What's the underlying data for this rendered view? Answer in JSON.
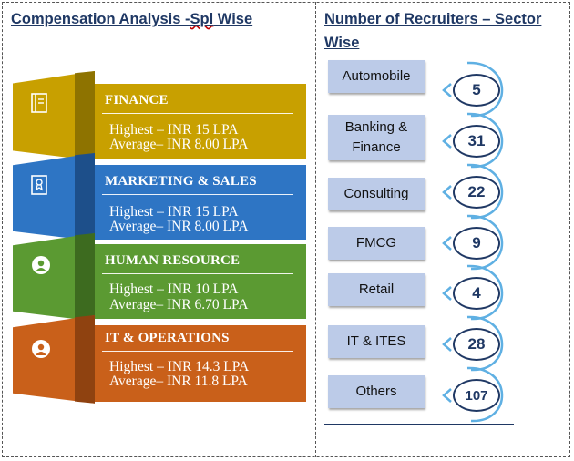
{
  "left_title_part1": "Compensation Analysis -",
  "left_title_part2": "Spl",
  "left_title_part3": " Wise",
  "right_title": "Number of Recruiters – Sector Wise",
  "specializations": [
    {
      "name": "FINANCE",
      "highest": "Highest – INR 15 LPA",
      "average": "Average– INR 8.00  LPA",
      "color": "#c8a000",
      "dark": "#8e7300",
      "icon": "book-icon"
    },
    {
      "name": "MARKETING & SALES",
      "highest": "Highest – INR 15 LPA",
      "average": "Average– INR 8.00  LPA",
      "color": "#2e75c4",
      "dark": "#1d4f8a",
      "icon": "badge-icon"
    },
    {
      "name": "HUMAN RESOURCE",
      "highest": "Highest – INR 10 LPA",
      "average": "Average– INR  6.70  LPA",
      "color": "#5b9a32",
      "dark": "#3d6b1f",
      "icon": "person-icon"
    },
    {
      "name": "IT & OPERATIONS",
      "highest": "Highest – INR 14.3 LPA",
      "average": "Average– INR 11.8  LPA",
      "color": "#c9601a",
      "dark": "#8f4210",
      "icon": "person-icon"
    }
  ],
  "sectors": [
    {
      "name": "Automobile",
      "count": "5"
    },
    {
      "name": "Banking & Finance",
      "count": "31"
    },
    {
      "name": "Consulting",
      "count": "22"
    },
    {
      "name": "FMCG",
      "count": "9"
    },
    {
      "name": "Retail",
      "count": "4"
    },
    {
      "name": "IT & ITES",
      "count": "28"
    },
    {
      "name": "Others",
      "count": "107"
    }
  ],
  "colors": {
    "title": "#1f3864",
    "sector_box": "#bccbe8",
    "arc": "#5fb0e3"
  }
}
